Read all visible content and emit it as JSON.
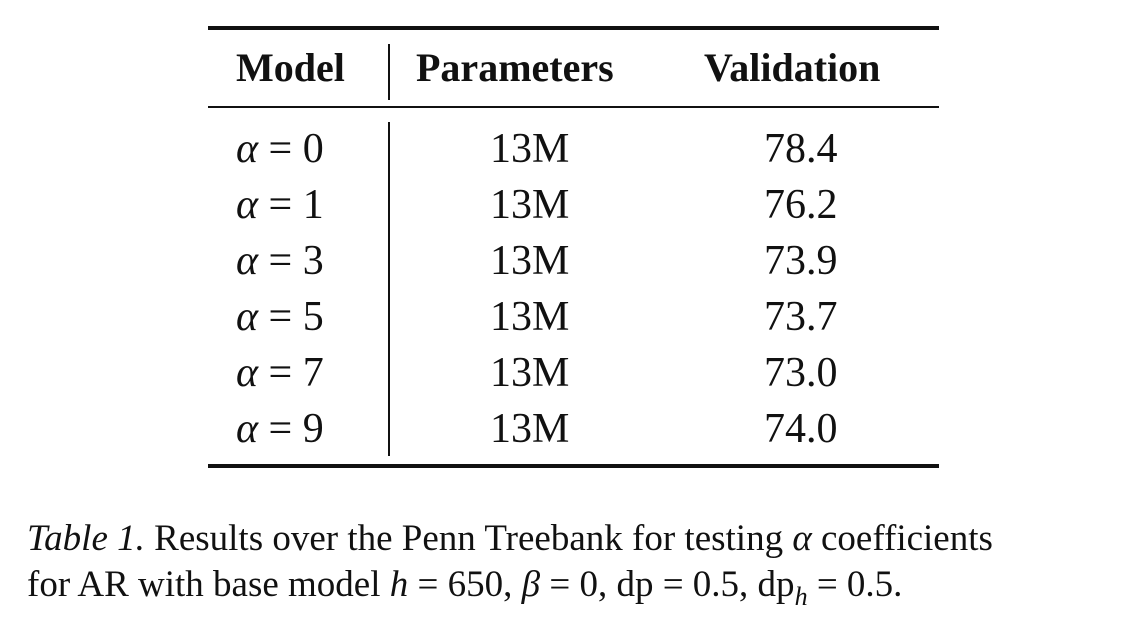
{
  "table": {
    "headers": {
      "model": "Model",
      "parameters": "Parameters",
      "validation": "Validation"
    },
    "rows": [
      {
        "var": "α",
        "op": " = ",
        "val": "0",
        "params": "13M",
        "validation": "78.4"
      },
      {
        "var": "α",
        "op": " = ",
        "val": "1",
        "params": "13M",
        "validation": "76.2"
      },
      {
        "var": "α",
        "op": " = ",
        "val": "3",
        "params": "13M",
        "validation": "73.9"
      },
      {
        "var": "α",
        "op": " = ",
        "val": "5",
        "params": "13M",
        "validation": "73.7"
      },
      {
        "var": "α",
        "op": " = ",
        "val": "7",
        "params": "13M",
        "validation": "73.0"
      },
      {
        "var": "α",
        "op": " = ",
        "val": "9",
        "params": "13M",
        "validation": "74.0"
      }
    ]
  },
  "caption": {
    "label": "Table 1.",
    "line1_text": " Results over the Penn Treebank for testing ",
    "line1_var": "α",
    "line1_end": " coefficients",
    "line2_text": "for AR with base model ",
    "h_var": "h",
    "h_val": " = 650, ",
    "beta_var": "β",
    "beta_val": " = 0, dp = 0.5, dp",
    "sub_var": "h",
    "sub_val": " = 0.5."
  }
}
